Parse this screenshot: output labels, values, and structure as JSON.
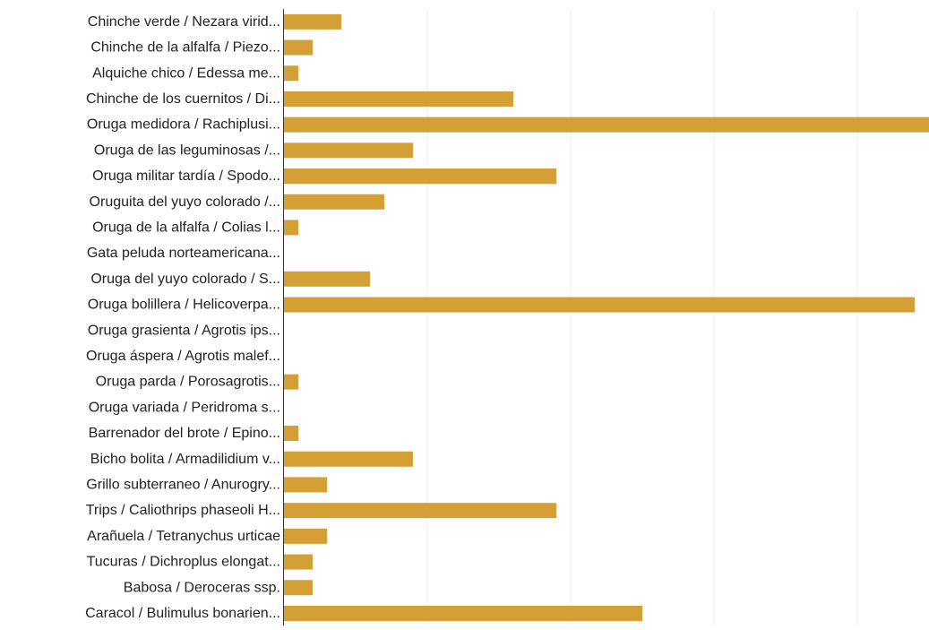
{
  "chart_data": {
    "type": "bar",
    "orientation": "horizontal",
    "color": "#D4A035",
    "grid": true,
    "xlim": [
      0,
      45
    ],
    "categories": [
      "Chinche verde / Nezara virid...",
      "Chinche de la alfalfa / Piezo...",
      "Alquiche chico / Edessa me...",
      "Chinche de los cuernitos / Di...",
      "Oruga medidora / Rachiplusi...",
      "Oruga de las leguminosas /...",
      "Oruga militar tardía / Spodo...",
      "Oruguita del yuyo colorado /...",
      "Oruga de la alfalfa / Colias l...",
      "Gata peluda norteamericana...",
      "Oruga del yuyo colorado / S...",
      "Oruga bolillera / Helicoverpa...",
      "Oruga grasienta / Agrotis ips...",
      "Oruga áspera / Agrotis malef...",
      "Oruga parda / Porosagrotis...",
      "Oruga variada / Peridroma s...",
      "Barrenador del brote / Epino...",
      "Bicho bolita / Armadilidium v...",
      "Grillo subterraneo / Anurogry...",
      "Trips / Caliothrips phaseoli H...",
      "Arañuela / Tetranychus urticae",
      "Tucuras / Dichroplus elongat...",
      "Babosa / Deroceras ssp.",
      "Caracol / Bulimulus bonarien..."
    ],
    "values": [
      4,
      2,
      1,
      16,
      45,
      9,
      19,
      7,
      1,
      0,
      6,
      44,
      0,
      0,
      1,
      0,
      1,
      9,
      3,
      19,
      3,
      2,
      2,
      25
    ]
  }
}
